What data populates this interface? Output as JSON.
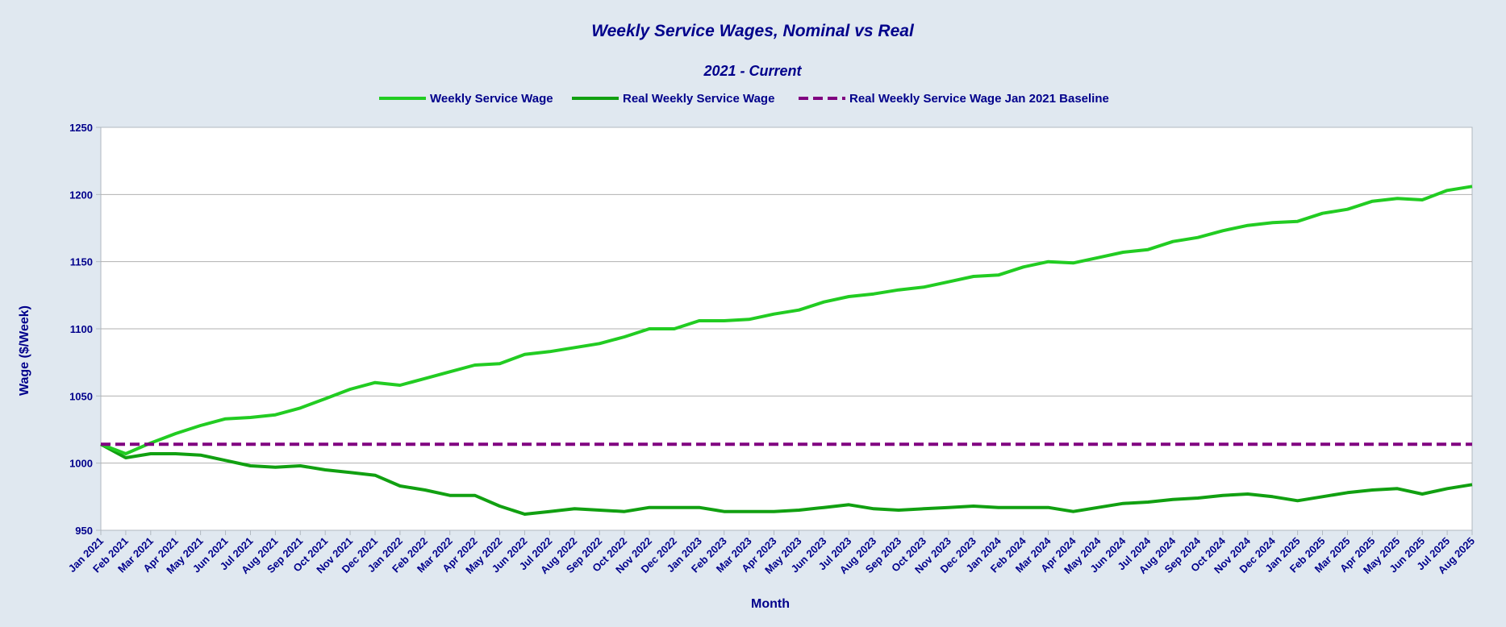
{
  "chart_data": {
    "type": "line",
    "title": "Weekly Service Wages, Nominal vs Real",
    "subtitle": "2021 - Current",
    "xlabel": "Month",
    "ylabel": "Wage ($/Week)",
    "ylim": [
      950,
      1250
    ],
    "yticks": [
      950,
      1000,
      1050,
      1100,
      1150,
      1200,
      1250
    ],
    "grid": true,
    "legend_position": "top-center",
    "categories": [
      "Jan 2021",
      "Feb 2021",
      "Mar 2021",
      "Apr 2021",
      "May 2021",
      "Jun 2021",
      "Jul 2021",
      "Aug 2021",
      "Sep 2021",
      "Oct 2021",
      "Nov 2021",
      "Dec 2021",
      "Jan 2022",
      "Feb 2022",
      "Mar 2022",
      "Apr 2022",
      "May 2022",
      "Jun 2022",
      "Jul 2022",
      "Aug 2022",
      "Sep 2022",
      "Oct 2022",
      "Nov 2022",
      "Dec 2022",
      "Jan 2023",
      "Feb 2023",
      "Mar 2023",
      "Apr 2023",
      "May 2023",
      "Jun 2023",
      "Jul 2023",
      "Aug 2023",
      "Sep 2023",
      "Oct 2023",
      "Nov 2023",
      "Dec 2023",
      "Jan 2024",
      "Feb 2024",
      "Mar 2024",
      "Apr 2024",
      "May 2024",
      "Jun 2024",
      "Jul 2024",
      "Aug 2024",
      "Sep 2024",
      "Oct 2024",
      "Nov 2024",
      "Dec 2024",
      "Jan 2025",
      "Feb 2025",
      "Mar 2025",
      "Apr 2025",
      "May 2025",
      "Jun 2025",
      "Jul 2025",
      "Aug 2025"
    ],
    "series": [
      {
        "name": "Weekly Service Wage",
        "color": "#22cc22",
        "dash": false,
        "values": [
          1014,
          1007,
          1015,
          1022,
          1028,
          1033,
          1034,
          1036,
          1041,
          1048,
          1055,
          1060,
          1058,
          1063,
          1068,
          1073,
          1074,
          1081,
          1083,
          1086,
          1089,
          1094,
          1100,
          1100,
          1106,
          1106,
          1107,
          1111,
          1114,
          1120,
          1124,
          1126,
          1129,
          1131,
          1135,
          1139,
          1140,
          1146,
          1150,
          1149,
          1153,
          1157,
          1159,
          1165,
          1168,
          1173,
          1177,
          1179,
          1180,
          1186,
          1189,
          1195,
          1197,
          1196,
          1203,
          1206
        ]
      },
      {
        "name": "Real Weekly Service  Wage",
        "color": "#11a011",
        "dash": false,
        "values": [
          1014,
          1004,
          1007,
          1007,
          1006,
          1002,
          998,
          997,
          998,
          995,
          993,
          991,
          983,
          980,
          976,
          976,
          968,
          962,
          964,
          966,
          965,
          964,
          967,
          967,
          967,
          964,
          964,
          964,
          965,
          967,
          969,
          966,
          965,
          966,
          967,
          968,
          967,
          967,
          967,
          964,
          967,
          970,
          971,
          973,
          974,
          976,
          977,
          975,
          972,
          975,
          978,
          980,
          981,
          977,
          981,
          984
        ]
      },
      {
        "name": "Real Weekly Service Wage Jan 2021 Baseline",
        "color": "#800080",
        "dash": true,
        "values": [
          1014,
          1014,
          1014,
          1014,
          1014,
          1014,
          1014,
          1014,
          1014,
          1014,
          1014,
          1014,
          1014,
          1014,
          1014,
          1014,
          1014,
          1014,
          1014,
          1014,
          1014,
          1014,
          1014,
          1014,
          1014,
          1014,
          1014,
          1014,
          1014,
          1014,
          1014,
          1014,
          1014,
          1014,
          1014,
          1014,
          1014,
          1014,
          1014,
          1014,
          1014,
          1014,
          1014,
          1014,
          1014,
          1014,
          1014,
          1014,
          1014,
          1014,
          1014,
          1014,
          1014,
          1014,
          1014,
          1014
        ]
      }
    ]
  }
}
